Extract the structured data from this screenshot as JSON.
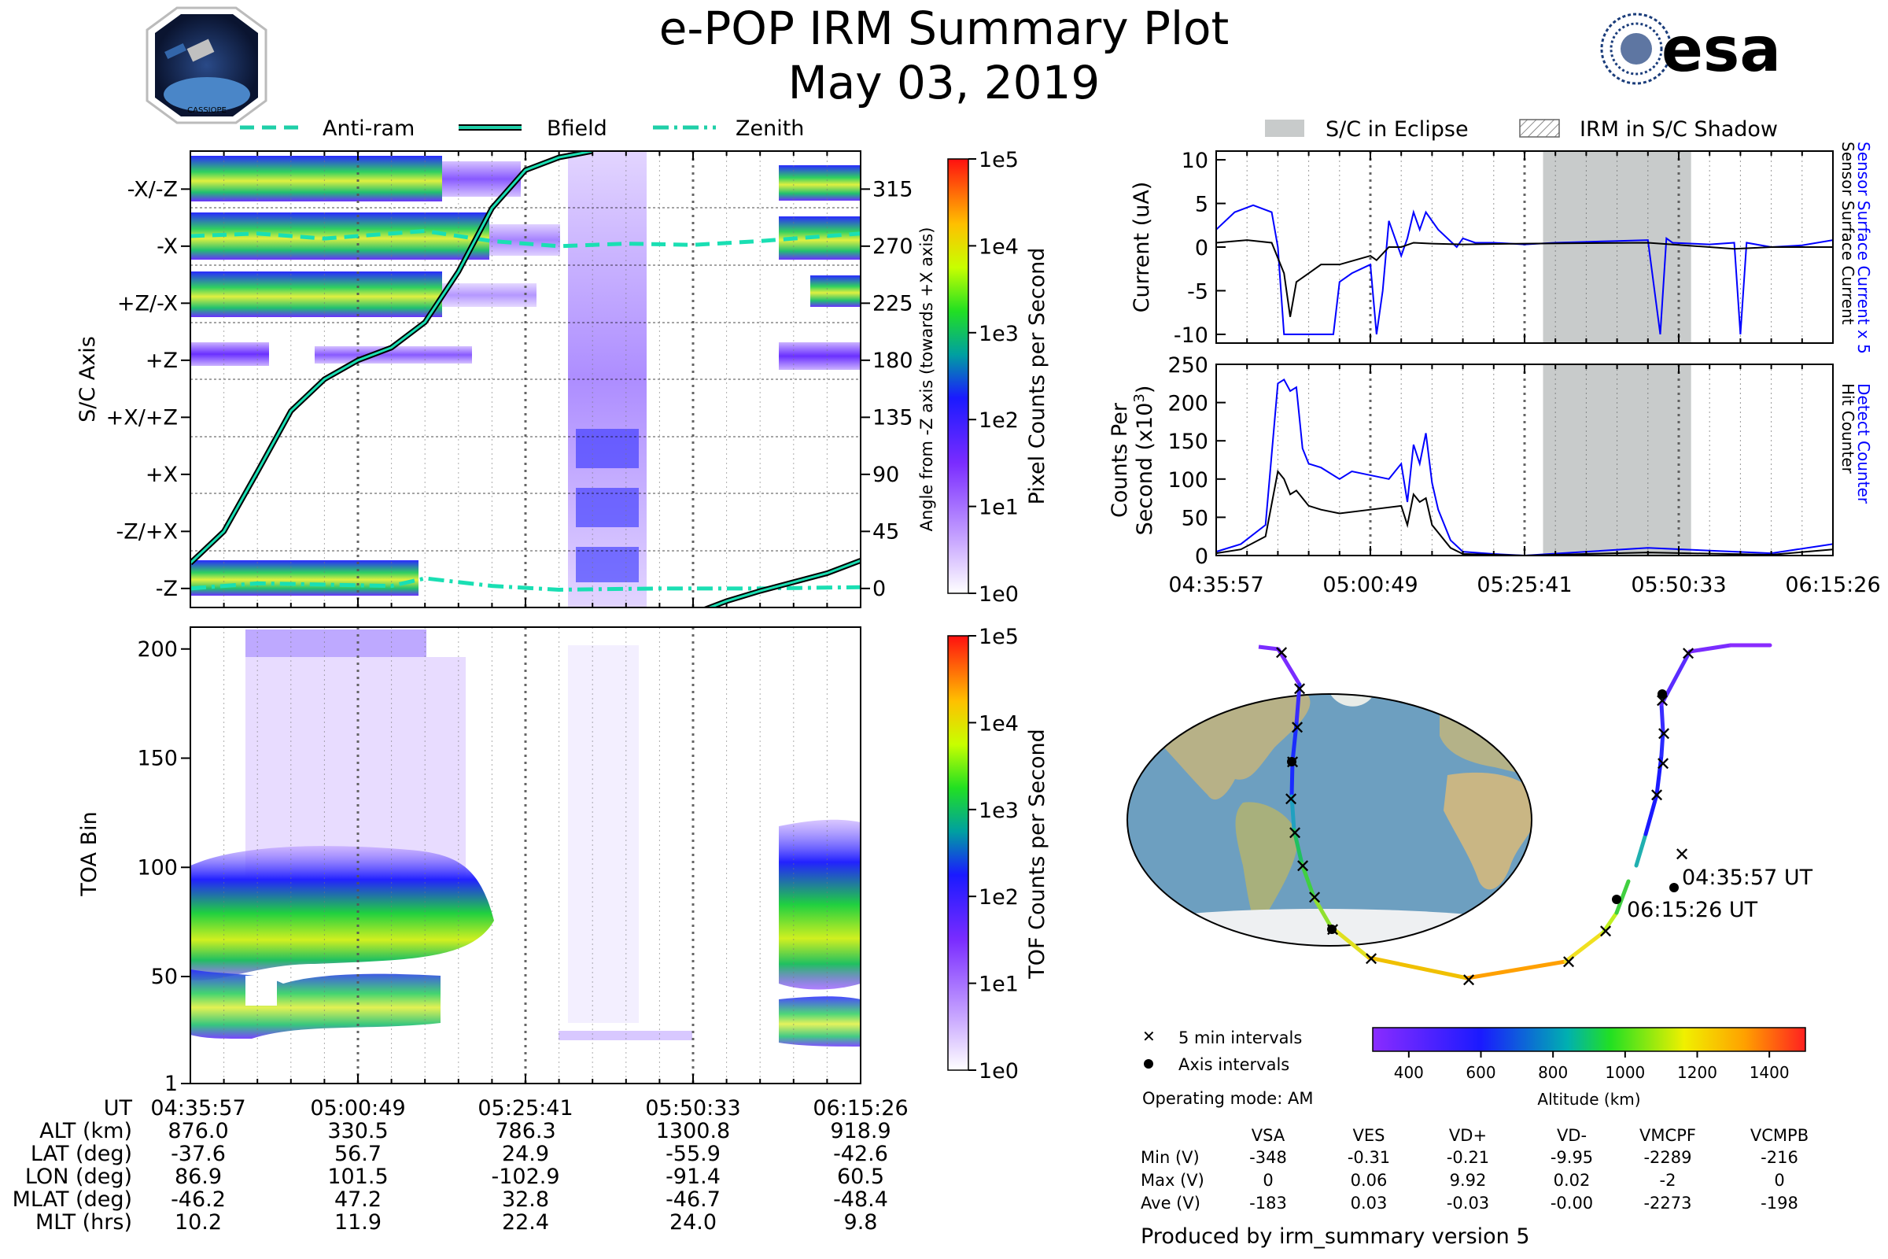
{
  "header": {
    "title": "e-POP IRM Summary Plot",
    "date": "May 03, 2019",
    "logo_left_text": "CASSIOPE",
    "logo_right_text": "esa"
  },
  "legend_top_left": {
    "items": [
      {
        "label": "Anti-ram",
        "style": "dashed"
      },
      {
        "label": "Bfield",
        "style": "solid"
      },
      {
        "label": "Zenith",
        "style": "dashdot"
      }
    ]
  },
  "legend_top_right": {
    "items": [
      {
        "label": "S/C in Eclipse",
        "style": "gray-fill"
      },
      {
        "label": "IRM in S/C Shadow",
        "style": "hatch"
      }
    ]
  },
  "colors": {
    "line_blue": "#0000ff",
    "eclipse_gray": "#c8cbcb",
    "trace_teal": "#1adfb3",
    "ocean": "#6d9fc0",
    "land": "#b9b08a"
  },
  "time_ticks": [
    "04:35:57",
    "05:00:49",
    "05:25:41",
    "05:50:33",
    "06:15:26"
  ],
  "chart_data": [
    {
      "type": "heatmap",
      "name": "pixel-spectrogram",
      "ylabel": "S/C Axis",
      "y_categories": [
        "-X/-Z",
        "-X",
        "+Z/-X",
        "+Z",
        "+X/+Z",
        "+X",
        "-Z/+X",
        "-Z"
      ],
      "right_ylabel": "Angle from -Z axis (towards +X axis)",
      "right_ticks": [
        "315",
        "270",
        "225",
        "180",
        "135",
        "90",
        "45",
        "0"
      ],
      "colorbar_label": "Pixel Counts per Second",
      "colorbar_ticks": [
        "1e5",
        "1e4",
        "1e3",
        "1e2",
        "1e1",
        "1e0"
      ],
      "angle_ylim": [
        -15,
        345
      ],
      "series": [
        {
          "name": "Anti-ram",
          "x_min": [
            0,
            10,
            20,
            30,
            35,
            45,
            55,
            65,
            75,
            85,
            100
          ],
          "y_deg": [
            278,
            280,
            276,
            280,
            282,
            274,
            270,
            272,
            271,
            274,
            280
          ]
        },
        {
          "name": "Bfield",
          "x_min": [
            0,
            5,
            10,
            15,
            20,
            25,
            30,
            35,
            40,
            45,
            50,
            55,
            60
          ],
          "y_deg": [
            20,
            45,
            92,
            140,
            165,
            180,
            190,
            210,
            250,
            300,
            330,
            340,
            345
          ]
        },
        {
          "name": "Zenith",
          "x_min": [
            0,
            10,
            20,
            30,
            35,
            45,
            55,
            70,
            85,
            100
          ],
          "y_deg": [
            0,
            4,
            3,
            2,
            8,
            2,
            -1,
            0,
            0,
            1
          ]
        },
        {
          "name": "Bfield-2",
          "x_min": [
            75,
            80,
            85,
            90,
            95,
            100
          ],
          "y_deg": [
            -20,
            -10,
            -2,
            5,
            12,
            22
          ]
        }
      ]
    },
    {
      "type": "heatmap",
      "name": "tof-spectrogram",
      "ylabel": "TOA Bin",
      "yticks": [
        "200",
        "150",
        "100",
        "50",
        "1"
      ],
      "ylim": [
        1,
        210
      ],
      "colorbar_label": "TOF Counts per Second",
      "colorbar_ticks": [
        "1e5",
        "1e4",
        "1e3",
        "1e2",
        "1e1",
        "1e0"
      ]
    },
    {
      "type": "line",
      "name": "sensor-current",
      "ylabel": "Current (uA)",
      "yticks": [
        "10",
        "5",
        "0",
        "-5",
        "-10"
      ],
      "ylim": [
        -11,
        11
      ],
      "right_label_1": "Sensor Surface Current x 5",
      "right_label_2": "Sensor Surface Current",
      "eclipse_x_min": [
        53,
        77
      ],
      "series": [
        {
          "name": "Sensor Surface Current x 5",
          "x_min": [
            0,
            3,
            6,
            9,
            10,
            11,
            14,
            19,
            20,
            22,
            25,
            26,
            27,
            28,
            30,
            31,
            32,
            33,
            34,
            36,
            39,
            40,
            42,
            45,
            50,
            55,
            65,
            70,
            72,
            73,
            74,
            80,
            84,
            85,
            86,
            90,
            95,
            100
          ],
          "y": [
            2,
            4,
            4.8,
            4,
            0,
            -10,
            -10,
            -10,
            -4,
            -3,
            -2,
            -10,
            -5,
            3,
            -1,
            1,
            4,
            2,
            4,
            2,
            0,
            1,
            0.5,
            0.5,
            0.3,
            0.5,
            0.7,
            0.8,
            -10,
            1,
            0.5,
            0.3,
            0.5,
            -10,
            0.5,
            0,
            0.2,
            0.8
          ]
        },
        {
          "name": "Sensor Surface Current",
          "x_min": [
            0,
            5,
            9,
            11,
            12,
            13,
            15,
            17,
            20,
            25,
            26,
            28,
            30,
            32,
            35,
            40,
            50,
            70,
            84,
            90,
            100
          ],
          "y": [
            0.5,
            0.8,
            0.5,
            -3,
            -8,
            -4,
            -3,
            -2,
            -2,
            -1,
            -1.5,
            0,
            0,
            0.5,
            0.4,
            0.3,
            0.4,
            0.5,
            -0.2,
            0,
            0
          ]
        }
      ]
    },
    {
      "type": "line",
      "name": "hit-counter",
      "ylabel": "Counts Per Second (x10^3)",
      "yticks": [
        "250",
        "200",
        "150",
        "100",
        "50",
        "0"
      ],
      "ylim": [
        0,
        250
      ],
      "right_label_1": "Detect Counter",
      "right_label_2": "Hit Counter",
      "eclipse_x_min": [
        53,
        77
      ],
      "series": [
        {
          "name": "Detect Counter",
          "x_min": [
            0,
            4,
            8,
            10,
            11,
            12,
            13,
            14,
            15,
            17,
            20,
            22,
            25,
            28,
            30,
            31,
            32,
            33,
            34,
            35,
            36,
            38,
            40,
            45,
            50,
            60,
            70,
            90,
            100
          ],
          "y": [
            5,
            15,
            40,
            225,
            230,
            215,
            220,
            140,
            120,
            115,
            100,
            110,
            105,
            100,
            120,
            70,
            145,
            120,
            160,
            95,
            60,
            20,
            5,
            2,
            0,
            5,
            10,
            3,
            15
          ]
        },
        {
          "name": "Hit Counter",
          "x_min": [
            0,
            4,
            8,
            10,
            11,
            12,
            13,
            15,
            17,
            20,
            25,
            30,
            31,
            32,
            33,
            34,
            35,
            38,
            40,
            45,
            50,
            60,
            70,
            90,
            100
          ],
          "y": [
            3,
            8,
            25,
            110,
            100,
            80,
            85,
            65,
            60,
            55,
            60,
            65,
            40,
            80,
            70,
            75,
            40,
            10,
            2,
            1,
            0,
            2,
            4,
            1,
            8
          ]
        }
      ]
    }
  ],
  "map": {
    "start_label": "04:35:57 UT",
    "end_label": "06:15:26 UT"
  },
  "map_legend": {
    "five_min": "5 min intervals",
    "axis": "Axis intervals",
    "mode": "Operating mode: AM"
  },
  "altitude_colorbar": {
    "label": "Altitude (km)",
    "ticks": [
      "400",
      "600",
      "800",
      "1000",
      "1200",
      "1400"
    ]
  },
  "summary_rows": {
    "labels": [
      "UT",
      "ALT (km)",
      "LAT (deg)",
      "LON (deg)",
      "MLAT (deg)",
      "MLT (hrs)"
    ],
    "columns": [
      [
        "04:35:57",
        "876.0",
        "-37.6",
        "86.9",
        "-46.2",
        "10.2"
      ],
      [
        "05:00:49",
        "330.5",
        "56.7",
        "101.5",
        "47.2",
        "11.9"
      ],
      [
        "05:25:41",
        "786.3",
        "24.9",
        "-102.9",
        "32.8",
        "22.4"
      ],
      [
        "05:50:33",
        "1300.8",
        "-55.9",
        "-91.4",
        "-46.7",
        "24.0"
      ],
      [
        "06:15:26",
        "918.9",
        "-42.6",
        "60.5",
        "-48.4",
        "9.8"
      ]
    ]
  },
  "voltage_table": {
    "headers": [
      "VSA",
      "VES",
      "VD+",
      "VD-",
      "VMCPF",
      "VCMPB"
    ],
    "rows": [
      {
        "label": "Min (V)",
        "values": [
          "-348",
          "-0.31",
          "-0.21",
          "-9.95",
          "-2289",
          "-216"
        ]
      },
      {
        "label": "Max (V)",
        "values": [
          "0",
          "0.06",
          "9.92",
          "0.02",
          "-2",
          "0"
        ]
      },
      {
        "label": "Ave (V)",
        "values": [
          "-183",
          "0.03",
          "-0.03",
          "-0.00",
          "-2273",
          "-198"
        ]
      }
    ]
  },
  "footer": "Produced by irm_summary version 5"
}
